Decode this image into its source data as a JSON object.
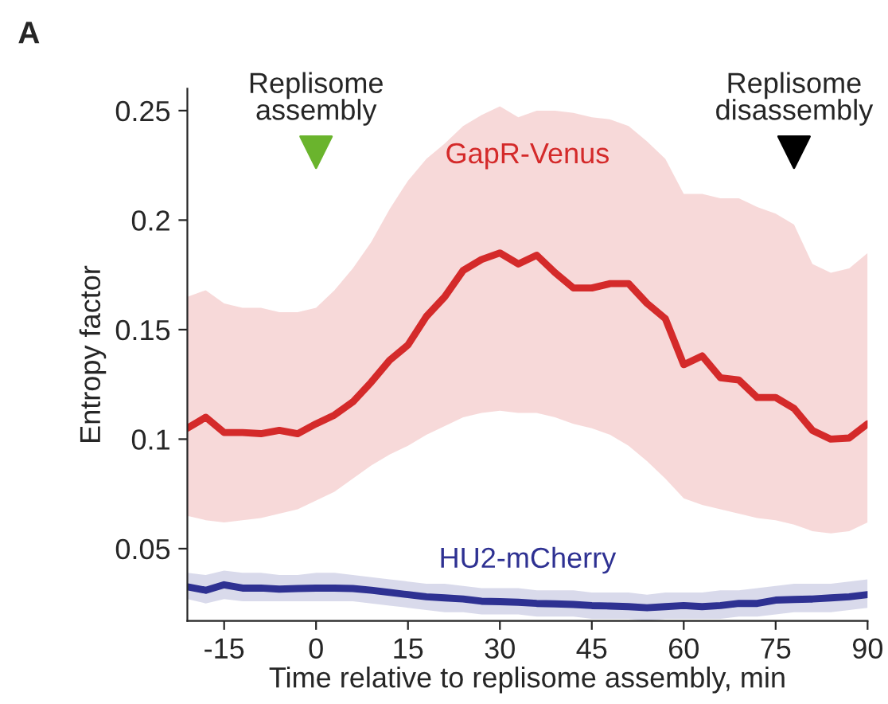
{
  "chart_data": {
    "type": "line",
    "xlabel": "Time relative to replisome assembly, min",
    "ylabel": "Entropy factor",
    "xlim": [
      -21,
      90
    ],
    "xticks": [
      -15,
      0,
      15,
      30,
      45,
      60,
      75,
      90
    ],
    "ylim": [
      0.017,
      0.26
    ],
    "yticks": [
      0.05,
      0.1,
      0.15,
      0.2,
      0.25
    ],
    "x": [
      -21,
      -18,
      -15,
      -12,
      -9,
      -6,
      -3,
      0,
      3,
      6,
      9,
      12,
      15,
      18,
      21,
      24,
      27,
      30,
      33,
      36,
      39,
      42,
      45,
      48,
      51,
      54,
      57,
      60,
      63,
      66,
      69,
      72,
      75,
      78,
      81,
      84,
      87,
      90
    ],
    "series": [
      {
        "name": "GapR-Venus",
        "color": "#d42a2a",
        "values": [
          0.105,
          0.11,
          0.103,
          0.103,
          0.1025,
          0.104,
          0.1025,
          0.107,
          0.111,
          0.117,
          0.126,
          0.136,
          0.143,
          0.156,
          0.165,
          0.177,
          0.182,
          0.185,
          0.18,
          0.184,
          0.176,
          0.169,
          0.169,
          0.171,
          0.171,
          0.162,
          0.155,
          0.134,
          0.138,
          0.128,
          0.127,
          0.119,
          0.119,
          0.114,
          0.104,
          0.1,
          0.1005,
          0.107
        ],
        "lower": [
          0.065,
          0.063,
          0.062,
          0.063,
          0.064,
          0.066,
          0.068,
          0.072,
          0.076,
          0.082,
          0.088,
          0.093,
          0.097,
          0.102,
          0.106,
          0.11,
          0.112,
          0.113,
          0.112,
          0.112,
          0.11,
          0.107,
          0.105,
          0.102,
          0.097,
          0.09,
          0.082,
          0.073,
          0.07,
          0.068,
          0.066,
          0.064,
          0.063,
          0.061,
          0.058,
          0.057,
          0.058,
          0.062
        ],
        "upper": [
          0.165,
          0.168,
          0.162,
          0.16,
          0.16,
          0.158,
          0.158,
          0.16,
          0.168,
          0.178,
          0.19,
          0.205,
          0.218,
          0.228,
          0.235,
          0.243,
          0.248,
          0.252,
          0.247,
          0.25,
          0.25,
          0.249,
          0.247,
          0.246,
          0.243,
          0.236,
          0.228,
          0.212,
          0.212,
          0.21,
          0.21,
          0.206,
          0.203,
          0.198,
          0.18,
          0.176,
          0.178,
          0.185
        ]
      },
      {
        "name": "HU2-mCherry",
        "color": "#2e3192",
        "values": [
          0.0326,
          0.031,
          0.0335,
          0.032,
          0.032,
          0.0315,
          0.0318,
          0.032,
          0.032,
          0.0318,
          0.031,
          0.03,
          0.029,
          0.028,
          0.0275,
          0.027,
          0.026,
          0.0258,
          0.0255,
          0.025,
          0.0248,
          0.0245,
          0.024,
          0.0238,
          0.0235,
          0.023,
          0.0235,
          0.024,
          0.0235,
          0.024,
          0.025,
          0.025,
          0.0265,
          0.0268,
          0.027,
          0.0275,
          0.028,
          0.029
        ],
        "lower": [
          0.027,
          0.025,
          0.027,
          0.026,
          0.026,
          0.026,
          0.026,
          0.026,
          0.026,
          0.026,
          0.025,
          0.024,
          0.023,
          0.022,
          0.021,
          0.021,
          0.02,
          0.02,
          0.02,
          0.019,
          0.019,
          0.019,
          0.018,
          0.018,
          0.018,
          0.017,
          0.018,
          0.018,
          0.018,
          0.018,
          0.019,
          0.019,
          0.02,
          0.021,
          0.021,
          0.021,
          0.022,
          0.023
        ],
        "upper": [
          0.039,
          0.038,
          0.04,
          0.039,
          0.039,
          0.038,
          0.038,
          0.039,
          0.039,
          0.038,
          0.037,
          0.036,
          0.035,
          0.034,
          0.034,
          0.033,
          0.032,
          0.032,
          0.032,
          0.031,
          0.031,
          0.031,
          0.03,
          0.03,
          0.03,
          0.029,
          0.03,
          0.03,
          0.03,
          0.031,
          0.031,
          0.032,
          0.033,
          0.034,
          0.034,
          0.034,
          0.035,
          0.036
        ]
      }
    ],
    "annotations": [
      "A",
      {
        "text": "Replisome\nassembly",
        "x": 0,
        "y": 0.231
      },
      {
        "text": "Replisome\ndisassembly",
        "x": 78,
        "y": 0.231
      }
    ],
    "grid": false,
    "legend": false
  }
}
